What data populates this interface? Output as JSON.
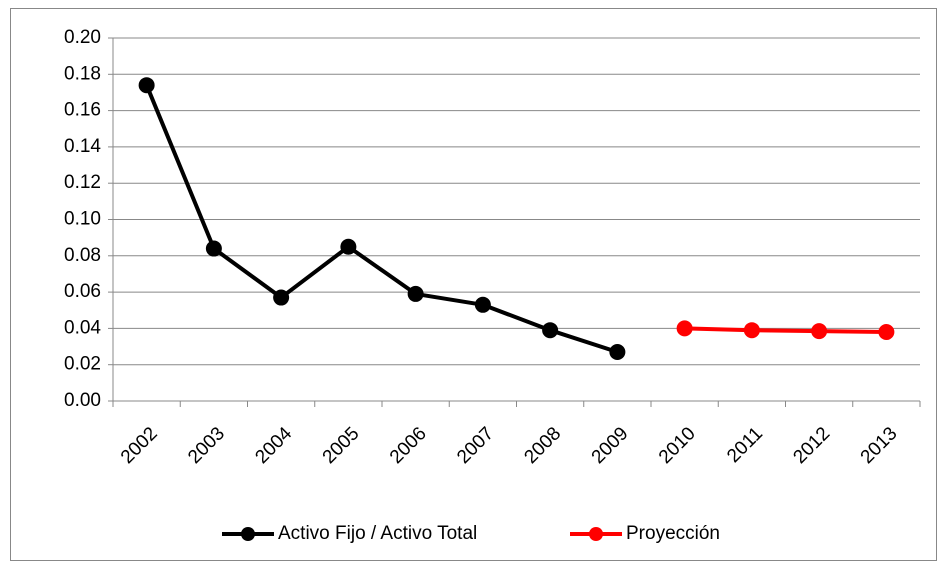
{
  "chart_data": {
    "type": "line",
    "categories": [
      "2002",
      "2003",
      "2004",
      "2005",
      "2006",
      "2007",
      "2008",
      "2009",
      "2010",
      "2011",
      "2012",
      "2013"
    ],
    "series": [
      {
        "name": "Activo Fijo / Activo Total",
        "color": "#000000",
        "values": [
          0.174,
          0.084,
          0.057,
          0.085,
          0.059,
          0.053,
          0.039,
          0.027,
          null,
          null,
          null,
          null
        ]
      },
      {
        "name": "Proyección",
        "color": "#ff0000",
        "values": [
          null,
          null,
          null,
          null,
          null,
          null,
          null,
          null,
          0.04,
          0.039,
          0.0385,
          0.038
        ]
      }
    ],
    "ylim": [
      0,
      0.2
    ],
    "yticks": [
      {
        "value": 0,
        "label": "0.00"
      },
      {
        "value": 0.02,
        "label": "0.02"
      },
      {
        "value": 0.04,
        "label": "0.04"
      },
      {
        "value": 0.06,
        "label": "0.06"
      },
      {
        "value": 0.08,
        "label": "0.08"
      },
      {
        "value": 0.1,
        "label": "0.10"
      },
      {
        "value": 0.12,
        "label": "0.12"
      },
      {
        "value": 0.14,
        "label": "0.14"
      },
      {
        "value": 0.16,
        "label": "0.16"
      },
      {
        "value": 0.18,
        "label": "0.18"
      },
      {
        "value": 0.2,
        "label": "0.20"
      }
    ],
    "grid": true,
    "legend": "bottom"
  }
}
